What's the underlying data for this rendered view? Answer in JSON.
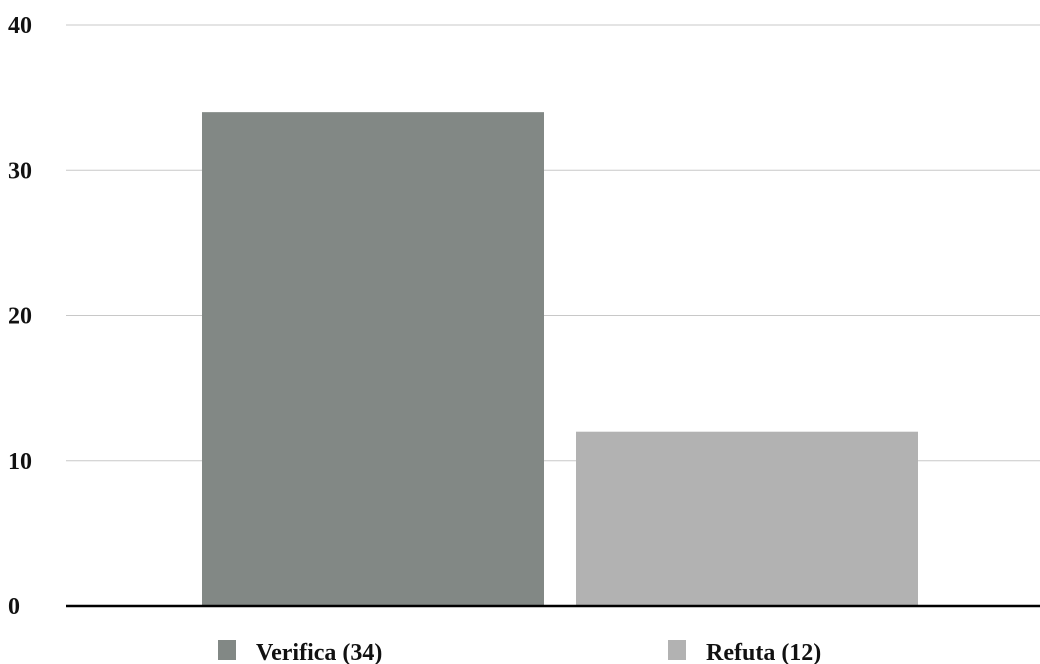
{
  "chart_data": {
    "type": "bar",
    "title": "",
    "xlabel": "",
    "ylabel": "",
    "ylim": [
      0,
      40
    ],
    "yticks": [
      0,
      10,
      20,
      30,
      40
    ],
    "grid": true,
    "legend_position": "bottom",
    "categories": [
      "Verifica (34)",
      "Refuta (12)"
    ],
    "values": [
      34,
      12
    ],
    "colors": [
      "#828885",
      "#b2b2b2"
    ]
  }
}
